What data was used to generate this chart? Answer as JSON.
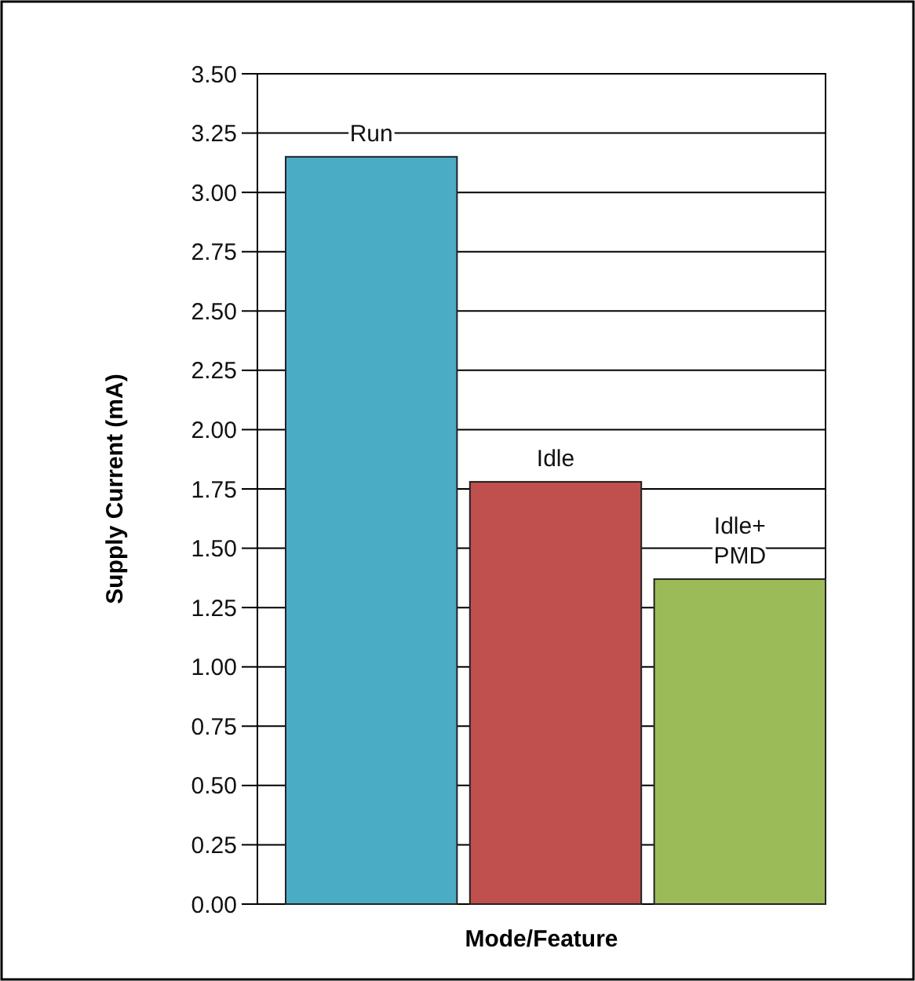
{
  "chart_data": {
    "type": "bar",
    "xlabel": "Mode/Feature",
    "ylabel": "Supply Current (mA)",
    "categories": [
      "Run",
      "Idle",
      "Idle+ PMD"
    ],
    "values": [
      3.15,
      1.78,
      1.37
    ],
    "colors": [
      "#4bacc6",
      "#c0504d",
      "#9bbb59"
    ],
    "ylim": [
      0,
      3.5
    ],
    "yticks": [
      {
        "value": 0,
        "label": "0.00"
      },
      {
        "value": 0.25,
        "label": "0.25"
      },
      {
        "value": 0.5,
        "label": "0.50"
      },
      {
        "value": 0.75,
        "label": "0.75"
      },
      {
        "value": 1,
        "label": "1.00"
      },
      {
        "value": 1.25,
        "label": "1.25"
      },
      {
        "value": 1.5,
        "label": "1.50"
      },
      {
        "value": 1.75,
        "label": "1.75"
      },
      {
        "value": 2,
        "label": "2.00"
      },
      {
        "value": 2.25,
        "label": "2.25"
      },
      {
        "value": 2.5,
        "label": "2.50"
      },
      {
        "value": 2.75,
        "label": "2.75"
      },
      {
        "value": 3,
        "label": "3.00"
      },
      {
        "value": 3.25,
        "label": "3.25"
      },
      {
        "value": 3.5,
        "label": "3.50"
      }
    ],
    "grid": "y"
  }
}
